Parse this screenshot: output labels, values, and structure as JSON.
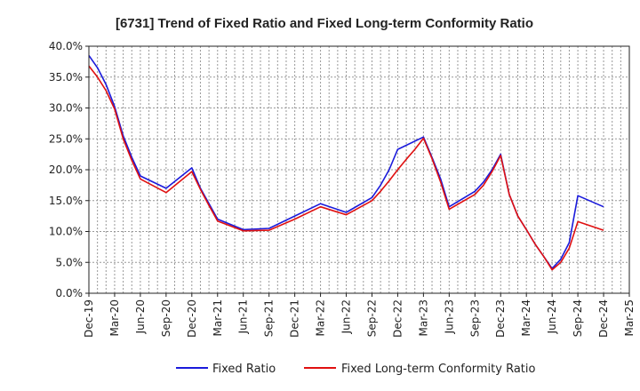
{
  "chart_data": {
    "type": "line",
    "title": "[6731]  Trend of Fixed Ratio and Fixed Long-term Conformity Ratio",
    "xlabel": "",
    "ylabel": "",
    "ylim": [
      0,
      40
    ],
    "y_ticks": [
      "0.0%",
      "5.0%",
      "10.0%",
      "15.0%",
      "20.0%",
      "25.0%",
      "30.0%",
      "35.0%",
      "40.0%"
    ],
    "x_tick_labels": [
      "Dec-19",
      "Mar-20",
      "Jun-20",
      "Sep-20",
      "Dec-20",
      "Mar-21",
      "Jun-21",
      "Sep-21",
      "Dec-21",
      "Mar-22",
      "Jun-22",
      "Sep-22",
      "Dec-22",
      "Mar-23",
      "Jun-23",
      "Sep-23",
      "Dec-23",
      "Mar-24",
      "Jun-24",
      "Sep-24",
      "Dec-24",
      "Mar-25"
    ],
    "x_months": [
      "2019-12",
      "2020-01",
      "2020-02",
      "2020-03",
      "2020-04",
      "2020-05",
      "2020-06",
      "2020-07",
      "2020-08",
      "2020-09",
      "2020-10",
      "2020-11",
      "2020-12",
      "2021-01",
      "2021-02",
      "2021-03",
      "2021-04",
      "2021-05",
      "2021-06",
      "2021-07",
      "2021-08",
      "2021-09",
      "2021-10",
      "2021-11",
      "2021-12",
      "2022-01",
      "2022-02",
      "2022-03",
      "2022-04",
      "2022-05",
      "2022-06",
      "2022-07",
      "2022-08",
      "2022-09",
      "2022-10",
      "2022-11",
      "2022-12",
      "2023-01",
      "2023-02",
      "2023-03",
      "2023-04",
      "2023-05",
      "2023-06",
      "2023-07",
      "2023-08",
      "2023-09",
      "2023-10",
      "2023-11",
      "2023-12",
      "2024-01",
      "2024-02",
      "2024-03",
      "2024-04",
      "2024-05",
      "2024-06",
      "2024-07",
      "2024-08",
      "2024-09",
      "2024-10",
      "2024-11",
      "2024-12",
      "2025-01",
      "2025-02",
      "2025-03"
    ],
    "grid": true,
    "legend_position": "bottom",
    "series": [
      {
        "name": "Fixed Ratio",
        "color": "#1a1adb",
        "points": [
          [
            "2019-12",
            38.5
          ],
          [
            "2020-01",
            36.5
          ],
          [
            "2020-02",
            33.8
          ],
          [
            "2020-03",
            30.2
          ],
          [
            "2020-04",
            25.5
          ],
          [
            "2020-05",
            22.0
          ],
          [
            "2020-06",
            19.0
          ],
          [
            "2020-09",
            17.0
          ],
          [
            "2020-12",
            20.3
          ],
          [
            "2021-01",
            17.0
          ],
          [
            "2021-02",
            14.5
          ],
          [
            "2021-03",
            12.0
          ],
          [
            "2021-06",
            10.3
          ],
          [
            "2021-09",
            10.5
          ],
          [
            "2021-12",
            12.5
          ],
          [
            "2022-03",
            14.5
          ],
          [
            "2022-06",
            13.1
          ],
          [
            "2022-09",
            15.5
          ],
          [
            "2022-10",
            17.5
          ],
          [
            "2022-11",
            20.0
          ],
          [
            "2022-12",
            23.3
          ],
          [
            "2023-03",
            25.3
          ],
          [
            "2023-04",
            22.0
          ],
          [
            "2023-05",
            18.5
          ],
          [
            "2023-06",
            14.0
          ],
          [
            "2023-09",
            16.5
          ],
          [
            "2023-10",
            18.0
          ],
          [
            "2023-11",
            20.0
          ],
          [
            "2023-12",
            22.5
          ],
          [
            "2024-01",
            16.0
          ],
          [
            "2024-02",
            12.5
          ],
          [
            "2024-03",
            10.3
          ],
          [
            "2024-04",
            8.0
          ],
          [
            "2024-05",
            6.0
          ],
          [
            "2024-06",
            4.0
          ],
          [
            "2024-07",
            5.5
          ],
          [
            "2024-08",
            8.2
          ],
          [
            "2024-09",
            15.8
          ],
          [
            "2024-12",
            14.0
          ]
        ]
      },
      {
        "name": "Fixed Long-term Conformity Ratio",
        "color": "#e01010",
        "points": [
          [
            "2019-12",
            36.8
          ],
          [
            "2020-01",
            35.0
          ],
          [
            "2020-02",
            32.8
          ],
          [
            "2020-03",
            29.8
          ],
          [
            "2020-04",
            25.0
          ],
          [
            "2020-05",
            21.5
          ],
          [
            "2020-06",
            18.5
          ],
          [
            "2020-09",
            16.3
          ],
          [
            "2020-12",
            19.7
          ],
          [
            "2021-01",
            16.8
          ],
          [
            "2021-02",
            14.2
          ],
          [
            "2021-03",
            11.7
          ],
          [
            "2021-06",
            10.1
          ],
          [
            "2021-09",
            10.2
          ],
          [
            "2021-12",
            12.0
          ],
          [
            "2022-03",
            14.0
          ],
          [
            "2022-06",
            12.7
          ],
          [
            "2022-09",
            15.0
          ],
          [
            "2022-10",
            16.5
          ],
          [
            "2022-11",
            18.2
          ],
          [
            "2022-12",
            20.0
          ],
          [
            "2023-01",
            21.7
          ],
          [
            "2023-02",
            23.3
          ],
          [
            "2023-03",
            25.1
          ],
          [
            "2023-04",
            21.8
          ],
          [
            "2023-05",
            18.0
          ],
          [
            "2023-06",
            13.6
          ],
          [
            "2023-09",
            16.0
          ],
          [
            "2023-10",
            17.5
          ],
          [
            "2023-11",
            19.7
          ],
          [
            "2023-12",
            22.3
          ],
          [
            "2024-01",
            16.0
          ],
          [
            "2024-02",
            12.5
          ],
          [
            "2024-03",
            10.3
          ],
          [
            "2024-04",
            8.0
          ],
          [
            "2024-05",
            6.0
          ],
          [
            "2024-06",
            3.8
          ],
          [
            "2024-07",
            5.0
          ],
          [
            "2024-08",
            7.3
          ],
          [
            "2024-09",
            11.6
          ],
          [
            "2024-12",
            10.2
          ]
        ]
      }
    ]
  }
}
